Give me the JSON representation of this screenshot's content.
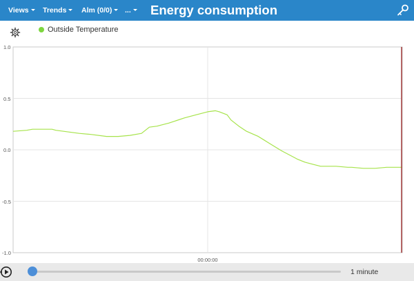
{
  "header": {
    "menus": [
      {
        "label": "Views"
      },
      {
        "label": "Trends"
      },
      {
        "label": "Alm (0/0)"
      },
      {
        "label": "..."
      }
    ],
    "title": "Energy consumption"
  },
  "legend": {
    "series_name": "Outside Temperature",
    "series_color": "#7dd63f"
  },
  "chart_data": {
    "type": "line",
    "ylim": [
      -1.0,
      1.0
    ],
    "yticks": [
      "1.0",
      "0.5",
      "0.0",
      "-0.5",
      "-1.0"
    ],
    "xtick_label": "00:00:00",
    "grid": true,
    "legend_position": "top-left",
    "series": [
      {
        "name": "Outside Temperature",
        "color": "#a6e34a",
        "x": [
          0,
          0.035,
          0.05,
          0.1,
          0.11,
          0.15,
          0.17,
          0.2,
          0.24,
          0.27,
          0.3,
          0.33,
          0.35,
          0.37,
          0.38,
          0.4,
          0.44,
          0.47,
          0.5,
          0.52,
          0.53,
          0.55,
          0.56,
          0.58,
          0.6,
          0.63,
          0.66,
          0.69,
          0.72,
          0.73,
          0.75,
          0.77,
          0.79,
          0.8,
          0.83,
          0.86,
          0.87,
          0.9,
          0.93,
          0.96,
          1.0
        ],
        "y": [
          0.18,
          0.19,
          0.2,
          0.2,
          0.19,
          0.17,
          0.16,
          0.15,
          0.13,
          0.13,
          0.14,
          0.16,
          0.22,
          0.23,
          0.24,
          0.26,
          0.31,
          0.34,
          0.37,
          0.38,
          0.37,
          0.34,
          0.29,
          0.23,
          0.18,
          0.13,
          0.06,
          -0.01,
          -0.07,
          -0.09,
          -0.12,
          -0.14,
          -0.16,
          -0.16,
          -0.16,
          -0.17,
          -0.17,
          -0.18,
          -0.18,
          -0.17,
          -0.17
        ]
      }
    ]
  },
  "playbar": {
    "range_label": "1 minute",
    "slider_position": 0
  }
}
